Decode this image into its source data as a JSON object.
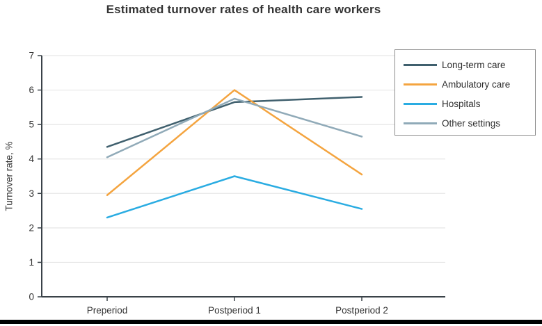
{
  "title": "Estimated turnover rates of health care workers",
  "chart_data": {
    "type": "line",
    "categories": [
      "Preperiod",
      "Postperiod 1",
      "Postperiod 2"
    ],
    "series": [
      {
        "name": "Long-term care",
        "color": "#40606e",
        "values": [
          4.35,
          5.65,
          5.8
        ]
      },
      {
        "name": "Ambulatory care",
        "color": "#f4a43f",
        "values": [
          2.95,
          6.0,
          3.55
        ]
      },
      {
        "name": "Hospitals",
        "color": "#2aace2",
        "values": [
          2.3,
          3.5,
          2.55
        ]
      },
      {
        "name": "Other settings",
        "color": "#90aab8",
        "values": [
          4.05,
          5.75,
          4.65
        ]
      }
    ],
    "xlabel": "",
    "ylabel": "Turnover rate, %",
    "ylim": [
      0,
      7
    ],
    "yticks": [
      0,
      1,
      2,
      3,
      4,
      5,
      6,
      7
    ],
    "grid": true,
    "legend_position": "top-right"
  },
  "colors": {
    "grid": "#e6e6e6",
    "axis": "#3a4248",
    "text": "#333333"
  }
}
